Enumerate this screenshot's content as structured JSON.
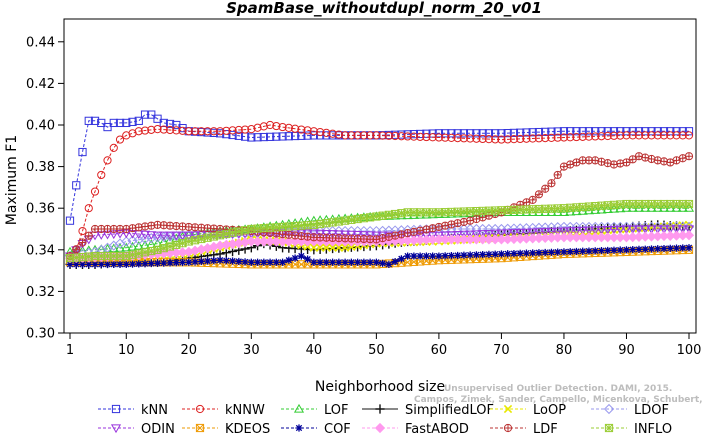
{
  "chart_data": {
    "type": "line",
    "title": "SpamBase_withoutdupl_norm_20_v01",
    "xlabel": "Neighborhood size",
    "ylabel": "Maximum F1",
    "xlim": [
      1,
      100
    ],
    "ylim": [
      0.3,
      0.45
    ],
    "xticks": [
      "1",
      "10",
      "20",
      "30",
      "40",
      "50",
      "60",
      "70",
      "80",
      "90",
      "100"
    ],
    "yticks": [
      "0.30",
      "0.32",
      "0.34",
      "0.36",
      "0.38",
      "0.40",
      "0.42",
      "0.44"
    ],
    "grid": false,
    "legend_position": "bottom",
    "credit_lines": [
      "Unsupervised Outlier Detection. DAMI, 2015.",
      "Campos, Zimek, Sander, Campello, Micenkova, Schubert, Assent, Houle"
    ],
    "series": [
      {
        "name": "kNN",
        "color": "#3333dd",
        "marker": "square",
        "dash": "dash",
        "points": [
          [
            1,
            0.354
          ],
          [
            2,
            0.371
          ],
          [
            3,
            0.387
          ],
          [
            4,
            0.402
          ],
          [
            5,
            0.402
          ],
          [
            6,
            0.401
          ],
          [
            7,
            0.399
          ],
          [
            8,
            0.401
          ],
          [
            10,
            0.401
          ],
          [
            12,
            0.402
          ],
          [
            13,
            0.405
          ],
          [
            14,
            0.405
          ],
          [
            15,
            0.403
          ],
          [
            16,
            0.401
          ],
          [
            18,
            0.4
          ],
          [
            20,
            0.397
          ],
          [
            25,
            0.396
          ],
          [
            30,
            0.394
          ],
          [
            40,
            0.395
          ],
          [
            50,
            0.395
          ],
          [
            60,
            0.396
          ],
          [
            70,
            0.396
          ],
          [
            80,
            0.397
          ],
          [
            90,
            0.397
          ],
          [
            100,
            0.397
          ]
        ]
      },
      {
        "name": "kNNW",
        "color": "#dd2222",
        "marker": "circle",
        "dash": "dash",
        "points": [
          [
            1,
            0.336
          ],
          [
            2,
            0.34
          ],
          [
            3,
            0.349
          ],
          [
            4,
            0.36
          ],
          [
            5,
            0.368
          ],
          [
            6,
            0.376
          ],
          [
            7,
            0.383
          ],
          [
            8,
            0.389
          ],
          [
            9,
            0.393
          ],
          [
            10,
            0.395
          ],
          [
            12,
            0.397
          ],
          [
            15,
            0.398
          ],
          [
            20,
            0.397
          ],
          [
            25,
            0.397
          ],
          [
            30,
            0.398
          ],
          [
            33,
            0.4
          ],
          [
            35,
            0.399
          ],
          [
            40,
            0.397
          ],
          [
            45,
            0.395
          ],
          [
            50,
            0.395
          ],
          [
            60,
            0.394
          ],
          [
            70,
            0.393
          ],
          [
            80,
            0.394
          ],
          [
            90,
            0.395
          ],
          [
            100,
            0.395
          ]
        ]
      },
      {
        "name": "LOF",
        "color": "#33cc33",
        "marker": "triangle",
        "dash": "dash",
        "points": [
          [
            1,
            0.339
          ],
          [
            5,
            0.34
          ],
          [
            10,
            0.341
          ],
          [
            15,
            0.343
          ],
          [
            20,
            0.347
          ],
          [
            25,
            0.349
          ],
          [
            30,
            0.35
          ],
          [
            35,
            0.352
          ],
          [
            40,
            0.354
          ],
          [
            50,
            0.356
          ],
          [
            60,
            0.357
          ],
          [
            70,
            0.358
          ],
          [
            80,
            0.358
          ],
          [
            90,
            0.36
          ],
          [
            100,
            0.36
          ]
        ]
      },
      {
        "name": "SimplifiedLOF",
        "color": "#111111",
        "marker": "plus",
        "dash": "solid",
        "points": [
          [
            1,
            0.333
          ],
          [
            5,
            0.333
          ],
          [
            10,
            0.334
          ],
          [
            15,
            0.334
          ],
          [
            20,
            0.336
          ],
          [
            25,
            0.338
          ],
          [
            30,
            0.341
          ],
          [
            32,
            0.343
          ],
          [
            35,
            0.341
          ],
          [
            40,
            0.34
          ],
          [
            45,
            0.341
          ],
          [
            50,
            0.342
          ],
          [
            55,
            0.344
          ],
          [
            60,
            0.345
          ],
          [
            65,
            0.346
          ],
          [
            70,
            0.347
          ],
          [
            75,
            0.348
          ],
          [
            80,
            0.349
          ],
          [
            85,
            0.35
          ],
          [
            90,
            0.351
          ],
          [
            95,
            0.352
          ],
          [
            100,
            0.351
          ]
        ]
      },
      {
        "name": "LoOP",
        "color": "#e8e800",
        "marker": "cross",
        "dash": "dash",
        "points": [
          [
            1,
            0.336
          ],
          [
            5,
            0.335
          ],
          [
            10,
            0.335
          ],
          [
            15,
            0.337
          ],
          [
            20,
            0.338
          ],
          [
            25,
            0.341
          ],
          [
            30,
            0.345
          ],
          [
            35,
            0.344
          ],
          [
            40,
            0.341
          ],
          [
            45,
            0.341
          ],
          [
            50,
            0.343
          ],
          [
            60,
            0.344
          ],
          [
            70,
            0.346
          ],
          [
            80,
            0.348
          ],
          [
            90,
            0.35
          ],
          [
            100,
            0.352
          ]
        ]
      },
      {
        "name": "LDOF",
        "color": "#9999ee",
        "marker": "diamond",
        "dash": "dash",
        "points": [
          [
            1,
            0.337
          ],
          [
            5,
            0.339
          ],
          [
            10,
            0.344
          ],
          [
            15,
            0.346
          ],
          [
            20,
            0.347
          ],
          [
            30,
            0.348
          ],
          [
            40,
            0.349
          ],
          [
            50,
            0.349
          ],
          [
            60,
            0.35
          ],
          [
            70,
            0.35
          ],
          [
            80,
            0.351
          ],
          [
            90,
            0.351
          ],
          [
            100,
            0.351
          ]
        ]
      },
      {
        "name": "ODIN",
        "color": "#9933dd",
        "marker": "triangle-down",
        "dash": "dash",
        "points": [
          [
            1,
            0.337
          ],
          [
            3,
            0.343
          ],
          [
            5,
            0.347
          ],
          [
            10,
            0.348
          ],
          [
            15,
            0.347
          ],
          [
            20,
            0.347
          ],
          [
            30,
            0.348
          ],
          [
            40,
            0.348
          ],
          [
            50,
            0.347
          ],
          [
            60,
            0.347
          ],
          [
            70,
            0.348
          ],
          [
            80,
            0.349
          ],
          [
            90,
            0.35
          ],
          [
            100,
            0.35
          ]
        ]
      },
      {
        "name": "KDEOS",
        "color": "#ee9900",
        "marker": "square-x",
        "dash": "dash",
        "points": [
          [
            1,
            0.334
          ],
          [
            10,
            0.334
          ],
          [
            20,
            0.334
          ],
          [
            30,
            0.333
          ],
          [
            40,
            0.333
          ],
          [
            50,
            0.333
          ],
          [
            55,
            0.334
          ],
          [
            60,
            0.335
          ],
          [
            70,
            0.336
          ],
          [
            80,
            0.338
          ],
          [
            90,
            0.339
          ],
          [
            100,
            0.34
          ]
        ]
      },
      {
        "name": "COF",
        "color": "#000099",
        "marker": "star",
        "dash": "dash",
        "points": [
          [
            1,
            0.333
          ],
          [
            10,
            0.333
          ],
          [
            20,
            0.334
          ],
          [
            25,
            0.335
          ],
          [
            30,
            0.334
          ],
          [
            35,
            0.334
          ],
          [
            38,
            0.337
          ],
          [
            40,
            0.334
          ],
          [
            50,
            0.334
          ],
          [
            52,
            0.333
          ],
          [
            55,
            0.337
          ],
          [
            60,
            0.337
          ],
          [
            70,
            0.338
          ],
          [
            80,
            0.339
          ],
          [
            90,
            0.34
          ],
          [
            100,
            0.341
          ]
        ]
      },
      {
        "name": "FastABOD",
        "color": "#ff99ee",
        "marker": "diamond-filled",
        "dash": "dash",
        "points": [
          [
            1,
            0.336
          ],
          [
            10,
            0.337
          ],
          [
            20,
            0.339
          ],
          [
            25,
            0.342
          ],
          [
            30,
            0.344
          ],
          [
            40,
            0.344
          ],
          [
            50,
            0.344
          ],
          [
            60,
            0.345
          ],
          [
            70,
            0.345
          ],
          [
            80,
            0.346
          ],
          [
            90,
            0.346
          ],
          [
            100,
            0.347
          ]
        ]
      },
      {
        "name": "LDF",
        "color": "#bb3333",
        "marker": "circle-plus",
        "dash": "dash",
        "points": [
          [
            1,
            0.337
          ],
          [
            5,
            0.35
          ],
          [
            10,
            0.35
          ],
          [
            15,
            0.352
          ],
          [
            20,
            0.351
          ],
          [
            30,
            0.349
          ],
          [
            40,
            0.346
          ],
          [
            50,
            0.345
          ],
          [
            60,
            0.351
          ],
          [
            65,
            0.354
          ],
          [
            70,
            0.358
          ],
          [
            75,
            0.364
          ],
          [
            78,
            0.372
          ],
          [
            80,
            0.38
          ],
          [
            83,
            0.383
          ],
          [
            85,
            0.383
          ],
          [
            88,
            0.381
          ],
          [
            90,
            0.382
          ],
          [
            92,
            0.385
          ],
          [
            95,
            0.383
          ],
          [
            97,
            0.382
          ],
          [
            100,
            0.385
          ]
        ]
      },
      {
        "name": "INFLO",
        "color": "#99cc33",
        "marker": "asterisk-square",
        "dash": "dash",
        "points": [
          [
            1,
            0.336
          ],
          [
            5,
            0.337
          ],
          [
            10,
            0.337
          ],
          [
            15,
            0.34
          ],
          [
            20,
            0.344
          ],
          [
            30,
            0.35
          ],
          [
            40,
            0.352
          ],
          [
            50,
            0.356
          ],
          [
            55,
            0.358
          ],
          [
            60,
            0.358
          ],
          [
            70,
            0.359
          ],
          [
            80,
            0.36
          ],
          [
            90,
            0.362
          ],
          [
            100,
            0.362
          ]
        ]
      }
    ]
  }
}
